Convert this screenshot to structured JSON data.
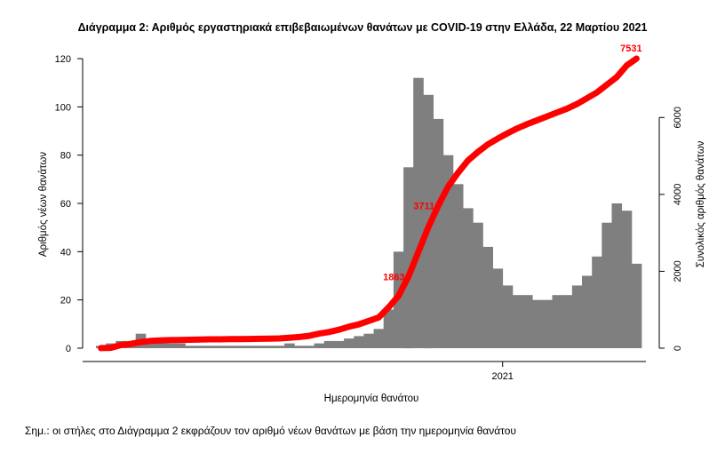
{
  "chart_data": {
    "type": "bar",
    "title": "Διάγραμμα 2: Αριθμός εργαστηριακά επιβεβαιωμένων θανάτων με COVID-19 στην Ελλάδα, 22 Μαρτίου 2021",
    "xlabel": "Ημερομηνία θανάτου",
    "ylabel": "Αριθμός νέων θανάτων",
    "y2label": "Συνολικός αριθμός θανάτων",
    "x_tick_labels": [
      "2021"
    ],
    "ylim": [
      0,
      120
    ],
    "y_ticks": [
      0,
      20,
      40,
      60,
      80,
      100,
      120
    ],
    "y2lim": [
      0,
      7531
    ],
    "y2_ticks": [
      0,
      2000,
      4000,
      6000
    ],
    "series": [
      {
        "type": "bar",
        "color": "#7f7f7f",
        "weekly_values": [
          1,
          2,
          3,
          2,
          6,
          4,
          3,
          2,
          2,
          1,
          1,
          1,
          1,
          1,
          1,
          1,
          1,
          1,
          1,
          2,
          1,
          1,
          2,
          3,
          3,
          4,
          5,
          6,
          8,
          16,
          40,
          75,
          112,
          105,
          95,
          80,
          68,
          58,
          52,
          42,
          33,
          26,
          22,
          22,
          20,
          20,
          22,
          22,
          26,
          30,
          38,
          52,
          60,
          57,
          35
        ]
      },
      {
        "type": "line",
        "color": "#ff0000",
        "axis": "right",
        "weekly_cumulative": [
          3,
          10,
          80,
          110,
          160,
          190,
          200,
          210,
          215,
          220,
          225,
          230,
          232,
          235,
          238,
          240,
          245,
          250,
          255,
          270,
          290,
          320,
          380,
          420,
          480,
          560,
          620,
          710,
          800,
          1060,
          1360,
          1863,
          2500,
          3140,
          3700,
          4200,
          4560,
          4880,
          5100,
          5300,
          5450,
          5590,
          5720,
          5830,
          5930,
          6030,
          6130,
          6230,
          6350,
          6500,
          6650,
          6850,
          7050,
          7350,
          7531
        ]
      }
    ],
    "annotations": [
      {
        "text": "7531",
        "color": "#ff0000"
      },
      {
        "text": "3711",
        "color": "#ff0000"
      },
      {
        "text": "1863",
        "color": "#ff0000"
      }
    ]
  },
  "note": "Σημ.: οι στήλες στο Διάγραμμα 2 εκφράζουν τον αριθμό νέων θανάτων με βάση την ημερομηνία θανάτου"
}
